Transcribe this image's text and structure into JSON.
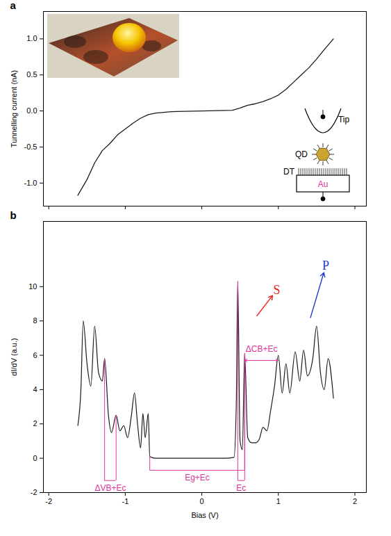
{
  "chart_data": [
    {
      "type": "line",
      "panel_label": "a",
      "y_label": "Tunnelling current (nA)",
      "color": "#1a1a1a",
      "x": [
        -1.62,
        -1.5,
        -1.4,
        -1.3,
        -1.2,
        -1.1,
        -1.0,
        -0.9,
        -0.8,
        -0.7,
        -0.6,
        -0.4,
        0,
        0.4,
        0.5,
        0.6,
        0.7,
        0.8,
        0.9,
        1.0,
        1.1,
        1.2,
        1.3,
        1.4,
        1.5,
        1.6,
        1.72
      ],
      "values": [
        -1.17,
        -0.95,
        -0.72,
        -0.55,
        -0.45,
        -0.33,
        -0.25,
        -0.17,
        -0.1,
        -0.05,
        -0.03,
        -0.01,
        0,
        0.01,
        0.04,
        0.08,
        0.1,
        0.13,
        0.17,
        0.22,
        0.3,
        0.4,
        0.5,
        0.6,
        0.72,
        0.85,
        1.0
      ],
      "xlim": [
        -2.07,
        2.15
      ],
      "xticks": [
        -2,
        -1,
        0,
        1,
        2
      ],
      "ylim": [
        -1.32,
        1.38
      ],
      "yticks": [
        {
          "value": -1,
          "label": "-1.0"
        },
        {
          "value": -0.5,
          "label": "-0.5"
        },
        {
          "value": 0,
          "label": "0.0"
        },
        {
          "value": 0.5,
          "label": "0.5"
        },
        {
          "value": 1,
          "label": "1.0"
        }
      ],
      "tick_labels": "y",
      "schematic_labels": [
        "Tip",
        "QD",
        "DT",
        "Au"
      ]
    },
    {
      "type": "line",
      "panel_label": "b",
      "x_label": "Bias (V)",
      "y_label": "dI/dV (a.u.)",
      "color": "#1a1a1a",
      "x": [
        -1.62,
        -1.58,
        -1.55,
        -1.5,
        -1.45,
        -1.4,
        -1.35,
        -1.3,
        -1.27,
        -1.22,
        -1.18,
        -1.12,
        -1.07,
        -1.02,
        -0.97,
        -0.92,
        -0.88,
        -0.84,
        -0.8,
        -0.77,
        -0.74,
        -0.7,
        -0.68,
        -0.6,
        -0.3,
        0,
        0.3,
        0.42,
        0.45,
        0.47,
        0.5,
        0.53,
        0.56,
        0.6,
        0.65,
        0.7,
        0.75,
        0.8,
        0.85,
        0.9,
        0.95,
        1.0,
        1.05,
        1.1,
        1.15,
        1.22,
        1.28,
        1.33,
        1.38,
        1.45,
        1.5,
        1.55,
        1.6,
        1.65,
        1.72
      ],
      "values": [
        1.9,
        4,
        8.0,
        5.5,
        4.2,
        7.7,
        5,
        4.5,
        5.8,
        2.5,
        1.5,
        2.5,
        1.6,
        1.9,
        1.2,
        2.5,
        3.8,
        2.0,
        0.6,
        2.6,
        1.2,
        2.6,
        0.1,
        0,
        0,
        0,
        0,
        0.05,
        3,
        10.3,
        1,
        0.5,
        6.1,
        1.2,
        0.9,
        0.9,
        1.1,
        1.8,
        1.6,
        2.8,
        4.2,
        6.0,
        3.8,
        5.5,
        3.8,
        6.2,
        4.5,
        6.3,
        4.8,
        5.8,
        7.7,
        5,
        4,
        5.8,
        3.5
      ],
      "xlim": [
        -2.07,
        2.15
      ],
      "xticks": [
        -2,
        -1,
        0,
        1,
        2
      ],
      "ylim": [
        -2,
        13.8
      ],
      "yticks": [
        -2,
        0,
        2,
        4,
        6,
        8,
        10
      ],
      "brackets": [
        {
          "text": "ΔVB+Ec",
          "x": [
            -1.27,
            -1.12
          ],
          "y": -1.3,
          "color": "#e0339a"
        },
        {
          "text": "Eg+Ec",
          "x": [
            -0.68,
            0.56
          ],
          "y": -0.7,
          "color": "#e0339a"
        },
        {
          "text": "Ec",
          "x": [
            0.47,
            0.56
          ],
          "y": -1.3,
          "color": "#e0339a"
        }
      ],
      "arrow_annotation": {
        "text": "ΔCB+Ec",
        "x": [
          0.56,
          1.0
        ],
        "y": 5.7,
        "color": "#e0339a"
      },
      "peak_labels": [
        {
          "text": "S",
          "color": "#e8231f",
          "x": 0.98,
          "y": 9.8,
          "from": [
            0.72,
            8.3
          ]
        },
        {
          "text": "P",
          "color": "#1f3fd0",
          "x": 1.62,
          "y": 11.2,
          "from": [
            1.42,
            8.2
          ]
        }
      ]
    }
  ]
}
